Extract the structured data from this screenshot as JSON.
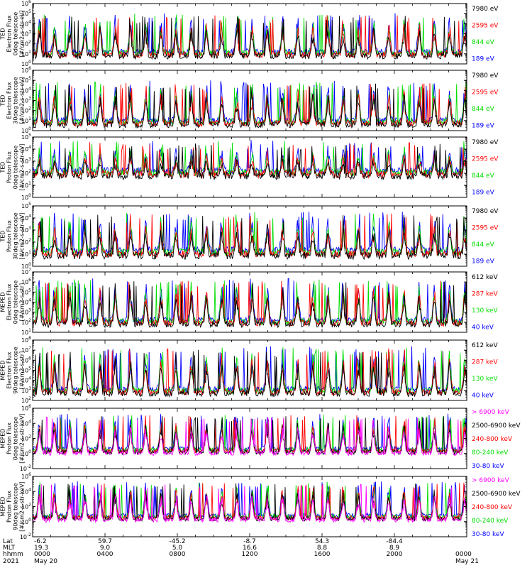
{
  "chart_data": [
    {
      "type": "line",
      "ylabel": [
        "TED",
        "Electron Flux",
        "0deg telescope",
        "[#/cm2-s-str-eV]"
      ],
      "ylim_exp": [
        0,
        6
      ],
      "ytick_exps": [
        0,
        1,
        2,
        3,
        4,
        5,
        6
      ],
      "series": [
        {
          "name": "7980 eV",
          "color": "#000000"
        },
        {
          "name": "2595 eV",
          "color": "#ff0000"
        },
        {
          "name": "844 eV",
          "color": "#00dd00"
        },
        {
          "name": "189 eV",
          "color": "#0000ff"
        }
      ],
      "base_exp": 1.2,
      "spike_exp": 4.3
    },
    {
      "type": "line",
      "ylabel": [
        "TED",
        "Electron Flux",
        "30deg telescope",
        "[#/cm2-s-str-eV]"
      ],
      "ylim_exp": [
        0,
        6
      ],
      "ytick_exps": [
        0,
        1,
        2,
        3,
        4,
        5,
        6
      ],
      "series": [
        {
          "name": "7980 eV",
          "color": "#000000"
        },
        {
          "name": "2595 eV",
          "color": "#ff0000"
        },
        {
          "name": "844 eV",
          "color": "#00dd00"
        },
        {
          "name": "189 eV",
          "color": "#0000ff"
        }
      ],
      "base_exp": 1.0,
      "spike_exp": 4.2
    },
    {
      "type": "line",
      "ylabel": [
        "TED",
        "Proton Flux",
        "0deg telescope",
        "[#/cm2-s-str-eV]"
      ],
      "ylim_exp": [
        0,
        5
      ],
      "ytick_exps": [
        0,
        1,
        2,
        3,
        4,
        5
      ],
      "series": [
        {
          "name": "7980 eV",
          "color": "#000000"
        },
        {
          "name": "2595 eV",
          "color": "#ff0000"
        },
        {
          "name": "844 eV",
          "color": "#00dd00"
        },
        {
          "name": "189 eV",
          "color": "#0000ff"
        }
      ],
      "base_exp": 2.2,
      "spike_exp": 4.0
    },
    {
      "type": "line",
      "ylabel": [
        "TED",
        "Proton Flux",
        "30deg telescope",
        "[#/cm2-s-str-eV]"
      ],
      "ylim_exp": [
        0,
        5
      ],
      "ytick_exps": [
        0,
        1,
        2,
        3,
        4,
        5
      ],
      "series": [
        {
          "name": "7980 eV",
          "color": "#000000"
        },
        {
          "name": "2595 eV",
          "color": "#ff0000"
        },
        {
          "name": "844 eV",
          "color": "#00dd00"
        },
        {
          "name": "189 eV",
          "color": "#0000ff"
        }
      ],
      "base_exp": 1.3,
      "spike_exp": 3.8
    },
    {
      "type": "line",
      "ylabel": [
        "MEPED",
        "Electron Flux",
        "0deg telescope",
        "[#/cm2-s-str]"
      ],
      "ylim_exp": [
        1,
        7
      ],
      "ytick_exps": [
        1,
        2,
        3,
        4,
        5,
        6,
        7
      ],
      "series": [
        {
          "name": "612 keV",
          "color": "#000000"
        },
        {
          "name": "287 keV",
          "color": "#ff0000"
        },
        {
          "name": "130 keV",
          "color": "#00dd00"
        },
        {
          "name": "40 keV",
          "color": "#0000ff"
        }
      ],
      "base_exp": 2.2,
      "spike_exp": 5.6
    },
    {
      "type": "line",
      "ylabel": [
        "MEPED",
        "Electron Flux",
        "90deg telescope",
        "[#/cm2-s-str]"
      ],
      "ylim_exp": [
        2,
        8
      ],
      "ytick_exps": [
        2,
        3,
        4,
        5,
        6,
        7,
        8
      ],
      "series": [
        {
          "name": "612 keV",
          "color": "#000000"
        },
        {
          "name": "287 keV",
          "color": "#ff0000"
        },
        {
          "name": "130 keV",
          "color": "#00dd00"
        },
        {
          "name": "40 keV",
          "color": "#0000ff"
        }
      ],
      "base_exp": 3.1,
      "spike_exp": 6.6
    },
    {
      "type": "line",
      "ylabel": [
        "MEPED",
        "Proton Flux",
        "0deg telescope",
        "[#/cm2-s-str-keV]"
      ],
      "ylim_exp": [
        -2,
        6
      ],
      "ytick_exps": [
        -2,
        0,
        2,
        4,
        6
      ],
      "series": [
        {
          "name": "> 6900 keV",
          "color": "#ff00ff"
        },
        {
          "name": "2500-6900 keV",
          "color": "#000000"
        },
        {
          "name": "240-800 keV",
          "color": "#ff0000"
        },
        {
          "name": "80-240 keV",
          "color": "#00dd00"
        },
        {
          "name": "30-80 keV",
          "color": "#0000ff"
        }
      ],
      "base_exp": 0.6,
      "spike_exp": 4.5
    },
    {
      "type": "line",
      "ylabel": [
        "MEPED",
        "Proton Flux",
        "90deg telescope",
        "[#/cm2-s-str-keV]"
      ],
      "ylim_exp": [
        -2,
        6
      ],
      "ytick_exps": [
        -2,
        0,
        2,
        4,
        6
      ],
      "series": [
        {
          "name": "> 6900 keV",
          "color": "#ff00ff"
        },
        {
          "name": "2500-6900 keV",
          "color": "#000000"
        },
        {
          "name": "240-800 keV",
          "color": "#ff0000"
        },
        {
          "name": "80-240 keV",
          "color": "#00dd00"
        },
        {
          "name": "30-80 keV",
          "color": "#0000ff"
        }
      ],
      "base_exp": 0.8,
      "spike_exp": 4.6
    }
  ],
  "x_axis": {
    "row_labels": [
      "Lat",
      "MLT",
      "hhmm",
      "2021"
    ],
    "columns": [
      {
        "lat": "-6.2",
        "mlt": "19.3",
        "hhmm": "0000",
        "date": "May 20"
      },
      {
        "lat": "59.7",
        "mlt": "9.0",
        "hhmm": "0400",
        "date": ""
      },
      {
        "lat": "-45.2",
        "mlt": "5.0",
        "hhmm": "0800",
        "date": ""
      },
      {
        "lat": "-8.7",
        "mlt": "16.6",
        "hhmm": "1200",
        "date": ""
      },
      {
        "lat": "54.3",
        "mlt": "8.8",
        "hhmm": "1600",
        "date": ""
      },
      {
        "lat": "-84.4",
        "mlt": "8.9",
        "hhmm": "2000",
        "date": ""
      },
      {
        "lat": "",
        "mlt": "",
        "hhmm": "0000",
        "date": "May 21"
      }
    ],
    "hours_range": [
      0,
      24
    ],
    "orbit_period_hours": 1.68
  }
}
